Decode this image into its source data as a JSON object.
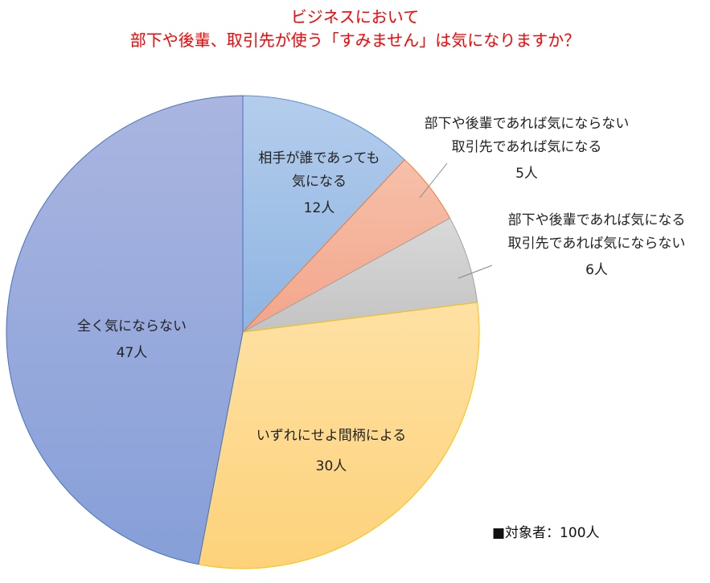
{
  "chart_data": {
    "type": "pie",
    "title": [
      "ビジネスにおいて",
      "部下や後輩、取引先が使う「すみません」は気になりますか？"
    ],
    "start": "12 o'clock, clockwise",
    "slices": [
      {
        "label": [
          "相手が誰であっても",
          "気になる"
        ],
        "value": 12,
        "value_label": "12人",
        "color": "#9dbfe6"
      },
      {
        "label": [
          "部下や後輩であれば気にならない",
          "取引先であれば気になる"
        ],
        "value": 5,
        "value_label": "5人",
        "color": "#f4ae94"
      },
      {
        "label": [
          "部下や後輩であれば気になる",
          "取引先であれば気にならない"
        ],
        "value": 6,
        "value_label": "6人",
        "color": "#cccccc"
      },
      {
        "label": [
          "いずれにせよ間柄による"
        ],
        "value": 30,
        "value_label": "30人",
        "color": "#fdd98c"
      },
      {
        "label": [
          "全く気にならない"
        ],
        "value": 47,
        "value_label": "47人",
        "color": "#98a9dc"
      }
    ],
    "note": "■対象者：100人"
  }
}
